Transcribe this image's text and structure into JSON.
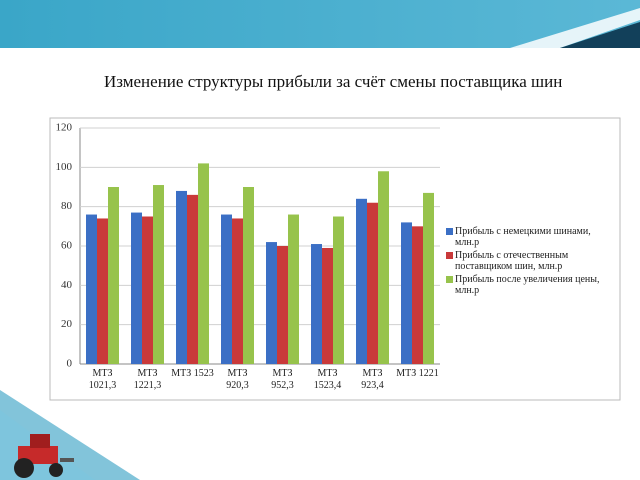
{
  "chart_data": {
    "type": "bar",
    "title": "Изменение структуры прибыли за счёт смены поставщика шин",
    "categories": [
      "МТЗ 1021,3",
      "МТЗ 1221,3",
      "МТЗ 1523",
      "МТЗ 920,3",
      "МТЗ 952,3",
      "МТЗ 1523,4",
      "МТЗ 923,4",
      "МТЗ 1221"
    ],
    "series": [
      {
        "name": "Прибыль с немецкими шинами, млн.р",
        "color": "#3b6fc5",
        "values": [
          76,
          77,
          88,
          76,
          62,
          61,
          84,
          72
        ]
      },
      {
        "name": "Прибыль с отечественным поставщиком шин, млн.р",
        "color": "#c9393a",
        "values": [
          74,
          75,
          86,
          74,
          60,
          59,
          82,
          70
        ]
      },
      {
        "name": "Прибыль после увеличения цены, млн.р",
        "color": "#97c34c",
        "values": [
          90,
          91,
          102,
          90,
          76,
          75,
          98,
          87
        ]
      }
    ],
    "ylim": [
      0,
      120
    ],
    "yticks": [
      0,
      20,
      40,
      60,
      80,
      100,
      120
    ],
    "grid": true,
    "legend": "right"
  }
}
